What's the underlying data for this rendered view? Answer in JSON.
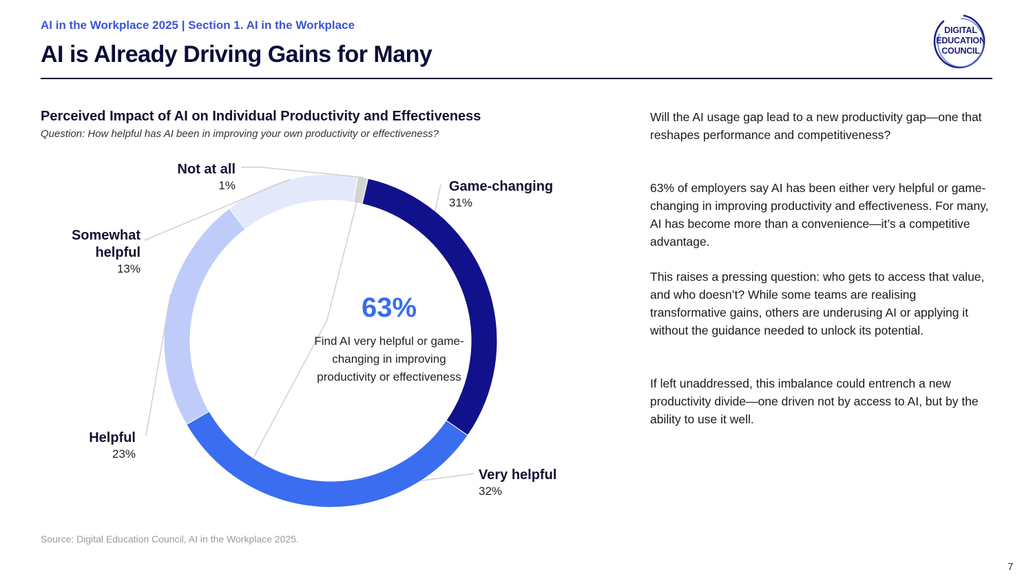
{
  "header": {
    "breadcrumb": "AI in the Workplace 2025 | Section 1. AI in the Workplace",
    "title": "AI is Already Driving Gains for Many"
  },
  "logo": {
    "line1": "DIGITAL",
    "line2": "EDUCATION",
    "line3": "COUNCIL"
  },
  "chart_data": {
    "type": "pie",
    "title": "Perceived Impact of AI on Individual Productivity and Effectiveness",
    "subtitle": "Question: How helpful has AI been in improving your own productivity or effectiveness?",
    "categories": [
      "Game-changing",
      "Very helpful",
      "Helpful",
      "Somewhat helpful",
      "Not at all"
    ],
    "values": [
      31,
      32,
      23,
      13,
      1
    ],
    "value_labels": [
      "31%",
      "32%",
      "23%",
      "13%",
      "1%"
    ],
    "colors": [
      "#11118c",
      "#3a6df0",
      "#bfccfa",
      "#e3e9fb",
      "#d4d4d4"
    ],
    "center": {
      "value": "63%",
      "text": "Find AI very helpful or game-changing in improving productivity or effectiveness"
    }
  },
  "body": {
    "paragraphs": [
      "Will the AI usage gap lead to a new productivity gap—one that reshapes performance and competitiveness?",
      "63% of employers say AI has been either very helpful or game-changing in improving productivity and effectiveness. For many, AI has become more than a convenience—it’s a competitive advantage.",
      "This raises a pressing question: who gets to access that value, and who doesn’t? While some teams are realising transformative gains, others are underusing AI or applying it without the guidance needed to unlock its potential.",
      "If left unaddressed, this imbalance could entrench a new productivity divide—one driven not by access to AI, but by the ability to use it well."
    ]
  },
  "footer": {
    "source": "Source: Digital Education Council, AI in the Workplace 2025.",
    "page_number": "7"
  }
}
